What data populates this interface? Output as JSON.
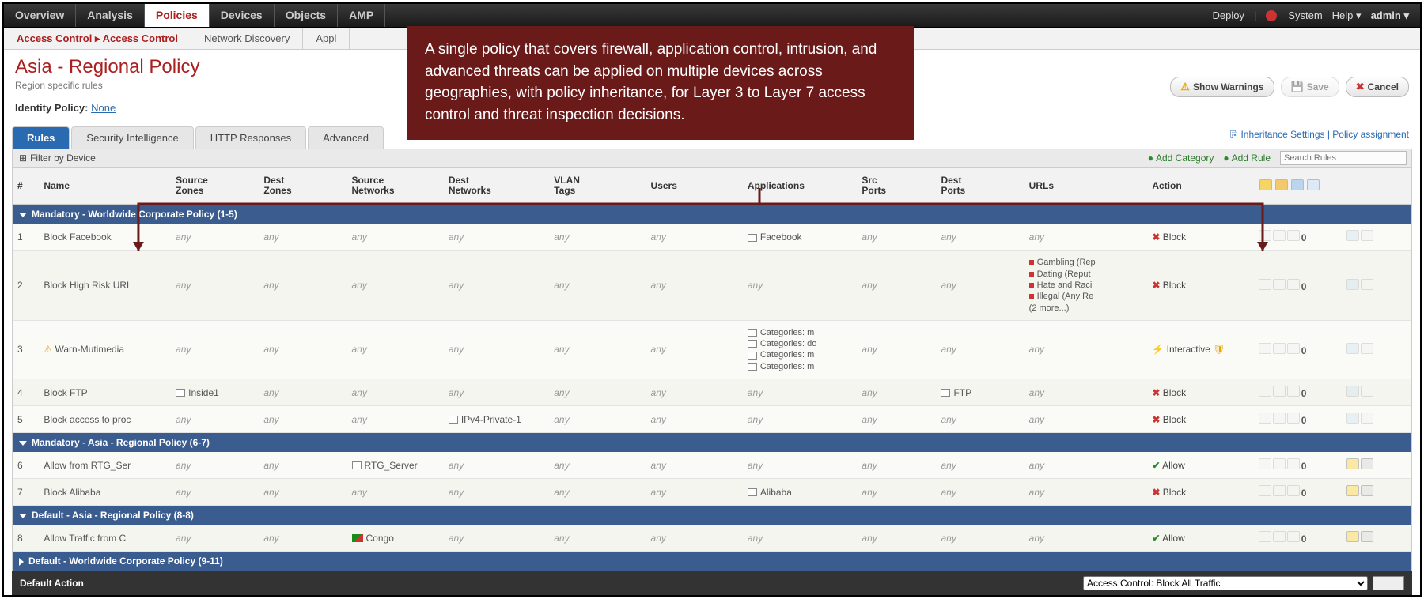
{
  "topnav": {
    "tabs": [
      "Overview",
      "Analysis",
      "Policies",
      "Devices",
      "Objects",
      "AMP"
    ],
    "active": 2,
    "right": {
      "deploy": "Deploy",
      "system": "System",
      "help": "Help",
      "user": "admin"
    }
  },
  "subnav": {
    "tabs": [
      "Access Control ▸ Access Control",
      "Network Discovery",
      "Appl"
    ],
    "active": 0
  },
  "header": {
    "title": "Asia - Regional Policy",
    "subtitle": "Region specific rules"
  },
  "identity": {
    "label": "Identity Policy:",
    "value": "None"
  },
  "actions": {
    "warnings": "Show Warnings",
    "save": "Save",
    "cancel": "Cancel"
  },
  "rightlinks": {
    "text": "Inheritance Settings | Policy assignment"
  },
  "policytabs": {
    "tabs": [
      "Rules",
      "Security Intelligence",
      "HTTP Responses",
      "Advanced"
    ],
    "active": 0
  },
  "toolbar": {
    "filter": "Filter by Device",
    "addCategory": "Add Category",
    "addRule": "Add Rule",
    "searchPlaceholder": "Search Rules"
  },
  "columns": [
    "#",
    "Name",
    "Source Zones",
    "Dest Zones",
    "Source Networks",
    "Dest Networks",
    "VLAN Tags",
    "Users",
    "Applications",
    "Src Ports",
    "Dest Ports",
    "URLs",
    "Action"
  ],
  "sections": [
    {
      "title": "Mandatory - Worldwide Corporate Policy (1-5)",
      "expanded": true,
      "rows": [
        {
          "n": "1",
          "name": "Block Facebook",
          "srcZones": "any",
          "destZones": "any",
          "srcNets": "any",
          "srcNetsIcon": true,
          "destNets": "any",
          "vlan": "any",
          "users": "any",
          "apps": "Facebook",
          "appsIcon": true,
          "srcPorts": "any",
          "destPorts": "any",
          "urls": "any",
          "action": "Block",
          "actionColor": "#c33",
          "actionGlyph": "✖",
          "count": "0"
        },
        {
          "n": "2",
          "name": "Block High Risk URL",
          "srcZones": "any",
          "destZones": "any",
          "srcNets": "any",
          "destNets": "any",
          "vlan": "any",
          "users": "any",
          "apps": "any",
          "srcPorts": "any",
          "destPorts": "any",
          "urlsMulti": [
            "Gambling (Rep",
            "Dating (Reput",
            "Hate and Raci",
            "Illegal (Any Re",
            "(2 more...)"
          ],
          "action": "Block",
          "actionColor": "#c33",
          "actionGlyph": "✖",
          "count": "0"
        },
        {
          "n": "3",
          "name": "Warn-Mutimedia",
          "nameWarn": true,
          "srcZones": "any",
          "destZones": "any",
          "srcNets": "any",
          "destNets": "any",
          "vlan": "any",
          "users": "any",
          "appsMulti": [
            "Categories: m",
            "Categories: do",
            "Categories: m",
            "Categories: m"
          ],
          "srcPorts": "any",
          "destPorts": "any",
          "urls": "any",
          "action": "Interactive",
          "actionColor": "#6a9a2f",
          "actionGlyph": "⚡",
          "actionBadge": true,
          "count": "0"
        },
        {
          "n": "4",
          "name": "Block FTP",
          "srcZones": "Inside1",
          "srcZonesIcon": true,
          "destZones": "any",
          "srcNets": "any",
          "destNets": "any",
          "vlan": "any",
          "users": "any",
          "apps": "any",
          "srcPorts": "any",
          "destPorts": "FTP",
          "destPortsIcon": true,
          "urls": "any",
          "action": "Block",
          "actionColor": "#c33",
          "actionGlyph": "✖",
          "count": "0"
        },
        {
          "n": "5",
          "name": "Block access to proc",
          "srcZones": "any",
          "destZones": "any",
          "srcNets": "any",
          "destNets": "IPv4-Private-1",
          "destNetsIcon": true,
          "vlan": "any",
          "users": "any",
          "apps": "any",
          "srcPorts": "any",
          "destPorts": "any",
          "urls": "any",
          "action": "Block",
          "actionColor": "#c33",
          "actionGlyph": "✖",
          "count": "0"
        }
      ]
    },
    {
      "title": "Mandatory - Asia - Regional Policy (6-7)",
      "expanded": true,
      "rows": [
        {
          "n": "6",
          "name": "Allow from RTG_Ser",
          "srcZones": "any",
          "destZones": "any",
          "srcNets": "RTG_Server",
          "srcNetsIcon": true,
          "destNets": "any",
          "vlan": "any",
          "users": "any",
          "apps": "any",
          "srcPorts": "any",
          "destPorts": "any",
          "urls": "any",
          "action": "Allow",
          "actionColor": "#2c8a2c",
          "actionGlyph": "✔",
          "count": "0",
          "editable": true
        },
        {
          "n": "7",
          "name": "Block Alibaba",
          "srcZones": "any",
          "destZones": "any",
          "srcNets": "any",
          "destNets": "any",
          "vlan": "any",
          "users": "any",
          "apps": "Alibaba",
          "appsIcon": true,
          "srcPorts": "any",
          "destPorts": "any",
          "urls": "any",
          "action": "Block",
          "actionColor": "#c33",
          "actionGlyph": "✖",
          "count": "0",
          "editable": true
        }
      ]
    },
    {
      "title": "Default - Asia - Regional Policy (8-8)",
      "expanded": true,
      "rows": [
        {
          "n": "8",
          "name": "Allow Traffic from C",
          "srcZones": "any",
          "destZones": "any",
          "srcNets": "Congo",
          "srcNetsFlag": true,
          "destNets": "any",
          "vlan": "any",
          "users": "any",
          "apps": "any",
          "srcPorts": "any",
          "destPorts": "any",
          "urls": "any",
          "action": "Allow",
          "actionColor": "#2c8a2c",
          "actionGlyph": "✔",
          "count": "0",
          "editable": true
        }
      ]
    },
    {
      "title": "Default - Worldwide Corporate Policy (9-11)",
      "expanded": false,
      "rows": []
    }
  ],
  "footer": {
    "label": "Default Action",
    "select": "Access Control: Block All Traffic"
  },
  "callout": "A single policy that covers firewall, application control, intrusion, and advanced threats can be applied on multiple devices across geographies, with policy inheritance, for Layer 3 to Layer 7 access control and threat inspection decisions."
}
